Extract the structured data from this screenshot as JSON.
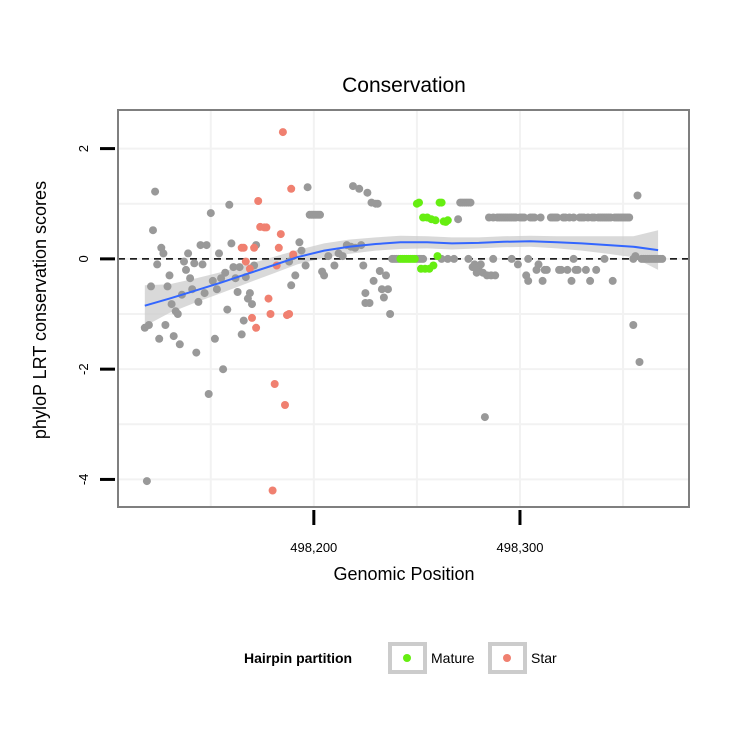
{
  "chart_data": {
    "type": "scatter",
    "title": "Conservation",
    "xlabel": "Genomic Position",
    "ylabel": "phyloP LRT conservation scores",
    "xlim": [
      498105,
      498382
    ],
    "ylim": [
      -4.5,
      2.7
    ],
    "x_ticks": [
      498200,
      498300
    ],
    "x_tick_labels": [
      "498,200",
      "498,300"
    ],
    "y_ticks": [
      -4,
      -2,
      0,
      2
    ],
    "y_tick_labels": [
      "-4",
      "-2",
      "0",
      "2"
    ],
    "reference_line": {
      "y": 0,
      "style": "dashed"
    },
    "grid": true,
    "legend": {
      "title": "Hairpin partition",
      "position": "bottom",
      "entries": [
        {
          "label": "Mature",
          "color": "#66ee11"
        },
        {
          "label": "Star",
          "color": "#f08070"
        }
      ]
    },
    "colors": {
      "other": "#999999",
      "mature": "#66ee11",
      "star": "#f08070",
      "smooth": "#3366ff",
      "ribbon": "#cccccc"
    },
    "series": [
      {
        "group": "other",
        "points": [
          [
            498118,
            -1.25
          ],
          [
            498120,
            -1.2
          ],
          [
            498121,
            -0.5
          ],
          [
            498122,
            0.52
          ],
          [
            498123,
            1.22
          ],
          [
            498124,
            -0.1
          ],
          [
            498125,
            -1.45
          ],
          [
            498126,
            0.2
          ],
          [
            498127,
            0.1
          ],
          [
            498128,
            -1.2
          ],
          [
            498129,
            -0.5
          ],
          [
            498130,
            -0.3
          ],
          [
            498131,
            -0.82
          ],
          [
            498132,
            -1.4
          ],
          [
            498133,
            -0.95
          ],
          [
            498134,
            -1.0
          ],
          [
            498135,
            -1.55
          ],
          [
            498136,
            -0.65
          ],
          [
            498137,
            -0.05
          ],
          [
            498138,
            -0.2
          ],
          [
            498139,
            0.1
          ],
          [
            498140,
            -0.35
          ],
          [
            498141,
            -0.55
          ],
          [
            498142,
            -0.08
          ],
          [
            498143,
            -1.7
          ],
          [
            498144,
            -0.78
          ],
          [
            498145,
            0.25
          ],
          [
            498146,
            -0.1
          ],
          [
            498147,
            -0.62
          ],
          [
            498148,
            0.25
          ],
          [
            498149,
            -2.45
          ],
          [
            498150,
            0.83
          ],
          [
            498151,
            -0.4
          ],
          [
            498152,
            -1.45
          ],
          [
            498153,
            -0.55
          ],
          [
            498154,
            0.1
          ],
          [
            498155,
            -0.35
          ],
          [
            498156,
            -2.0
          ],
          [
            498157,
            -0.25
          ],
          [
            498158,
            -0.92
          ],
          [
            498159,
            0.98
          ],
          [
            498160,
            0.28
          ],
          [
            498161,
            -0.15
          ],
          [
            498162,
            -0.35
          ],
          [
            498163,
            -0.6
          ],
          [
            498164,
            -0.15
          ],
          [
            498165,
            -1.37
          ],
          [
            498166,
            -1.12
          ],
          [
            498167,
            -0.33
          ],
          [
            498168,
            -0.72
          ],
          [
            498169,
            -0.62
          ],
          [
            498170,
            -0.82
          ],
          [
            498171,
            -0.12
          ],
          [
            498172,
            0.25
          ],
          [
            498188,
            -0.05
          ],
          [
            498189,
            -0.48
          ],
          [
            498190,
            0.05
          ],
          [
            498191,
            -0.3
          ],
          [
            498193,
            0.3
          ],
          [
            498194,
            0.15
          ],
          [
            498196,
            -0.12
          ],
          [
            498197,
            1.3
          ],
          [
            498198,
            0.8
          ],
          [
            498199,
            0.8
          ],
          [
            498200,
            0.8
          ],
          [
            498201,
            0.8
          ],
          [
            498202,
            0.8
          ],
          [
            498203,
            0.8
          ],
          [
            498204,
            -0.23
          ],
          [
            498205,
            -0.3
          ],
          [
            498207,
            0.05
          ],
          [
            498210,
            -0.12
          ],
          [
            498212,
            0.1
          ],
          [
            498214,
            0.05
          ],
          [
            498216,
            0.25
          ],
          [
            498218,
            0.22
          ],
          [
            498219,
            1.32
          ],
          [
            498220,
            0.2
          ],
          [
            498222,
            1.27
          ],
          [
            498223,
            0.25
          ],
          [
            498224,
            -0.12
          ],
          [
            498225,
            -0.62
          ],
          [
            498226,
            1.2
          ],
          [
            498227,
            -0.8
          ],
          [
            498228,
            1.02
          ],
          [
            498229,
            -0.4
          ],
          [
            498230,
            1.0
          ],
          [
            498231,
            1.0
          ],
          [
            498232,
            -0.22
          ],
          [
            498233,
            -0.55
          ],
          [
            498234,
            -0.7
          ],
          [
            498235,
            -0.3
          ],
          [
            498236,
            -0.55
          ],
          [
            498237,
            -1.0
          ],
          [
            498270,
            0.72
          ],
          [
            498271,
            1.02
          ],
          [
            498272,
            1.02
          ],
          [
            498273,
            1.02
          ],
          [
            498274,
            1.02
          ],
          [
            498275,
            1.02
          ],
          [
            498276,
            1.02
          ],
          [
            498277,
            -0.15
          ],
          [
            498278,
            -0.1
          ],
          [
            498279,
            -0.25
          ],
          [
            498280,
            -0.15
          ],
          [
            498281,
            -0.1
          ],
          [
            498282,
            -0.25
          ],
          [
            498283,
            -2.87
          ],
          [
            498284,
            -0.3
          ],
          [
            498285,
            0.75
          ],
          [
            498286,
            -0.3
          ],
          [
            498287,
            0.75
          ],
          [
            498288,
            -0.3
          ],
          [
            498289,
            0.75
          ],
          [
            498290,
            0.75
          ],
          [
            498291,
            0.75
          ],
          [
            498292,
            0.75
          ],
          [
            498293,
            0.75
          ],
          [
            498294,
            0.75
          ],
          [
            498295,
            0.75
          ],
          [
            498296,
            0.75
          ],
          [
            498297,
            0.75
          ],
          [
            498298,
            0.75
          ],
          [
            498299,
            -0.1
          ],
          [
            498300,
            0.75
          ],
          [
            498301,
            0.75
          ],
          [
            498302,
            0.75
          ],
          [
            498303,
            -0.3
          ],
          [
            498304,
            -0.4
          ],
          [
            498305,
            0.75
          ],
          [
            498306,
            0.75
          ],
          [
            498307,
            0.75
          ],
          [
            498308,
            -0.2
          ],
          [
            498309,
            -0.1
          ],
          [
            498310,
            0.75
          ],
          [
            498311,
            -0.4
          ],
          [
            498312,
            -0.2
          ],
          [
            498313,
            -0.2
          ],
          [
            498315,
            0.75
          ],
          [
            498316,
            0.75
          ],
          [
            498317,
            0.75
          ],
          [
            498318,
            0.75
          ],
          [
            498319,
            -0.2
          ],
          [
            498320,
            -0.2
          ],
          [
            498321,
            0.75
          ],
          [
            498322,
            0.75
          ],
          [
            498323,
            -0.2
          ],
          [
            498324,
            0.75
          ],
          [
            498325,
            -0.4
          ],
          [
            498326,
            0.75
          ],
          [
            498327,
            -0.2
          ],
          [
            498328,
            -0.2
          ],
          [
            498329,
            0.75
          ],
          [
            498330,
            0.75
          ],
          [
            498331,
            0.75
          ],
          [
            498332,
            -0.2
          ],
          [
            498333,
            0.75
          ],
          [
            498334,
            -0.4
          ],
          [
            498335,
            0.75
          ],
          [
            498336,
            0.75
          ],
          [
            498337,
            -0.2
          ],
          [
            498338,
            0.75
          ],
          [
            498339,
            0.75
          ],
          [
            498340,
            0.75
          ],
          [
            498341,
            0.75
          ],
          [
            498342,
            0.75
          ],
          [
            498343,
            0.75
          ],
          [
            498344,
            0.75
          ],
          [
            498345,
            -0.4
          ],
          [
            498346,
            0.75
          ],
          [
            498347,
            0.75
          ],
          [
            498348,
            0.75
          ],
          [
            498349,
            0.75
          ],
          [
            498350,
            0.75
          ],
          [
            498351,
            0.75
          ],
          [
            498352,
            0.75
          ],
          [
            498353,
            0.75
          ],
          [
            498355,
            -1.2
          ],
          [
            498356,
            0.05
          ],
          [
            498357,
            1.15
          ],
          [
            498358,
            -1.87
          ],
          [
            498359,
            0.0
          ],
          [
            498360,
            0.0
          ],
          [
            498361,
            0.0
          ],
          [
            498362,
            0.0
          ],
          [
            498363,
            0.0
          ],
          [
            498364,
            0.0
          ],
          [
            498365,
            0.0
          ],
          [
            498366,
            0.0
          ],
          [
            498367,
            0.0
          ],
          [
            498368,
            0.0
          ],
          [
            498369,
            0.0
          ],
          [
            498119,
            -4.03
          ],
          [
            498225,
            -0.8
          ],
          [
            498238,
            0.0
          ],
          [
            498239,
            0.0
          ],
          [
            498240,
            0.0
          ],
          [
            498241,
            0.0
          ],
          [
            498250,
            0.0
          ],
          [
            498251,
            0.0
          ],
          [
            498252,
            0.0
          ],
          [
            498253,
            0.0
          ],
          [
            498262,
            0.0
          ],
          [
            498265,
            0.0
          ],
          [
            498268,
            0.0
          ],
          [
            498275,
            0.0
          ],
          [
            498287,
            0.0
          ],
          [
            498296,
            0.0
          ],
          [
            498304,
            0.0
          ],
          [
            498326,
            0.0
          ],
          [
            498341,
            0.0
          ],
          [
            498355,
            0.0
          ]
        ]
      },
      {
        "group": "mature",
        "points": [
          [
            498242,
            0.0
          ],
          [
            498243,
            0.0
          ],
          [
            498244,
            0.0
          ],
          [
            498245,
            0.0
          ],
          [
            498246,
            0.0
          ],
          [
            498247,
            0.0
          ],
          [
            498248,
            0.0
          ],
          [
            498249,
            0.0
          ],
          [
            498250,
            1.0
          ],
          [
            498251,
            1.02
          ],
          [
            498252,
            -0.18
          ],
          [
            498253,
            0.75
          ],
          [
            498254,
            -0.18
          ],
          [
            498255,
            0.75
          ],
          [
            498256,
            -0.18
          ],
          [
            498257,
            0.72
          ],
          [
            498258,
            -0.12
          ],
          [
            498259,
            0.7
          ],
          [
            498260,
            0.05
          ],
          [
            498261,
            1.02
          ],
          [
            498262,
            1.02
          ],
          [
            498263,
            0.68
          ],
          [
            498264,
            0.67
          ],
          [
            498265,
            0.7
          ]
        ]
      },
      {
        "group": "star",
        "points": [
          [
            498165,
            0.2
          ],
          [
            498166,
            0.2
          ],
          [
            498167,
            -0.05
          ],
          [
            498169,
            -0.18
          ],
          [
            498170,
            -1.07
          ],
          [
            498171,
            0.2
          ],
          [
            498172,
            -1.25
          ],
          [
            498173,
            1.05
          ],
          [
            498174,
            0.58
          ],
          [
            498176,
            0.57
          ],
          [
            498177,
            0.57
          ],
          [
            498178,
            -0.72
          ],
          [
            498179,
            -1.0
          ],
          [
            498180,
            -4.2
          ],
          [
            498181,
            -2.27
          ],
          [
            498182,
            -0.12
          ],
          [
            498183,
            0.2
          ],
          [
            498184,
            0.45
          ],
          [
            498185,
            2.3
          ],
          [
            498186,
            -2.65
          ],
          [
            498187,
            -1.02
          ],
          [
            498188,
            -1.0
          ],
          [
            498189,
            1.27
          ],
          [
            498190,
            0.08
          ]
        ]
      }
    ],
    "smooth": {
      "x": [
        498118,
        498130,
        498142,
        498155,
        498167,
        498180,
        498192,
        498205,
        498217,
        498230,
        498242,
        498255,
        498267,
        498280,
        498292,
        498305,
        498318,
        498330,
        498343,
        498355,
        498367
      ],
      "y": [
        -0.85,
        -0.72,
        -0.58,
        -0.43,
        -0.28,
        -0.12,
        0.03,
        0.15,
        0.22,
        0.27,
        0.3,
        0.3,
        0.28,
        0.29,
        0.31,
        0.32,
        0.3,
        0.28,
        0.25,
        0.22,
        0.16
      ],
      "lower": [
        -1.22,
        -0.98,
        -0.8,
        -0.62,
        -0.45,
        -0.27,
        -0.1,
        0.02,
        0.09,
        0.15,
        0.18,
        0.19,
        0.17,
        0.19,
        0.21,
        0.22,
        0.19,
        0.15,
        0.09,
        0.03,
        -0.2
      ],
      "upper": [
        -0.48,
        -0.46,
        -0.36,
        -0.24,
        -0.11,
        0.03,
        0.16,
        0.28,
        0.35,
        0.39,
        0.42,
        0.41,
        0.39,
        0.39,
        0.41,
        0.42,
        0.41,
        0.41,
        0.41,
        0.41,
        0.52
      ]
    }
  }
}
